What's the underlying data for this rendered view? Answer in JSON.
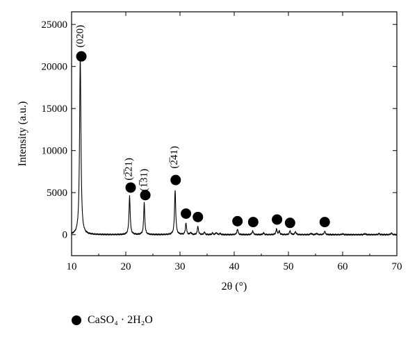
{
  "chart_data": {
    "type": "line",
    "xlabel": "2θ (°)",
    "ylabel": "Intensity (a.u.)",
    "xlim": [
      10,
      70
    ],
    "ylim": [
      -2500,
      26500
    ],
    "x_ticks": [
      10,
      20,
      30,
      40,
      50,
      60,
      70
    ],
    "y_ticks": [
      0,
      5000,
      10000,
      15000,
      20000,
      25000
    ],
    "grid": false,
    "baseline": 0,
    "peaks": [
      {
        "x": 11.6,
        "y": 21000,
        "w": 0.15
      },
      {
        "x": 20.7,
        "y": 4600,
        "w": 0.13
      },
      {
        "x": 23.4,
        "y": 3800,
        "w": 0.12
      },
      {
        "x": 29.1,
        "y": 5300,
        "w": 0.13
      },
      {
        "x": 31.1,
        "y": 1400,
        "w": 0.12
      },
      {
        "x": 32.0,
        "y": 250,
        "w": 0.12
      },
      {
        "x": 33.3,
        "y": 1000,
        "w": 0.12
      },
      {
        "x": 34.5,
        "y": 300,
        "w": 0.12
      },
      {
        "x": 36.0,
        "y": 200,
        "w": 0.12
      },
      {
        "x": 36.7,
        "y": 250,
        "w": 0.12
      },
      {
        "x": 37.4,
        "y": 150,
        "w": 0.12
      },
      {
        "x": 40.6,
        "y": 650,
        "w": 0.13
      },
      {
        "x": 43.4,
        "y": 450,
        "w": 0.13
      },
      {
        "x": 45.4,
        "y": 200,
        "w": 0.13
      },
      {
        "x": 47.8,
        "y": 650,
        "w": 0.13
      },
      {
        "x": 48.3,
        "y": 400,
        "w": 0.13
      },
      {
        "x": 50.3,
        "y": 450,
        "w": 0.13
      },
      {
        "x": 51.3,
        "y": 350,
        "w": 0.13
      },
      {
        "x": 54.2,
        "y": 150,
        "w": 0.13
      },
      {
        "x": 55.2,
        "y": 150,
        "w": 0.13
      },
      {
        "x": 56.7,
        "y": 400,
        "w": 0.13
      },
      {
        "x": 60.0,
        "y": 100,
        "w": 0.13
      },
      {
        "x": 64.1,
        "y": 120,
        "w": 0.13
      },
      {
        "x": 66.7,
        "y": 120,
        "w": 0.13
      },
      {
        "x": 69.0,
        "y": 200,
        "w": 0.13
      }
    ],
    "markers": [
      {
        "x": 11.8,
        "y": 21200
      },
      {
        "x": 20.9,
        "y": 5600
      },
      {
        "x": 23.6,
        "y": 4700
      },
      {
        "x": 29.2,
        "y": 6500
      },
      {
        "x": 31.1,
        "y": 2500
      },
      {
        "x": 33.3,
        "y": 2100
      },
      {
        "x": 40.6,
        "y": 1600
      },
      {
        "x": 43.5,
        "y": 1500
      },
      {
        "x": 47.9,
        "y": 1800
      },
      {
        "x": 50.3,
        "y": 1400
      },
      {
        "x": 56.7,
        "y": 1500
      }
    ],
    "annotations": [
      {
        "text": "(020)",
        "x": 12.1,
        "y": 23600,
        "rotate": -90
      },
      {
        "text": "(2̅21)",
        "x": 21.1,
        "y": 7800,
        "rotate": -90
      },
      {
        "text": "(1̅31)",
        "x": 23.9,
        "y": 6500,
        "rotate": -90
      },
      {
        "text": "(2̅41)",
        "x": 29.5,
        "y": 9200,
        "rotate": -90
      }
    ],
    "legend": {
      "placement": "bottom-left",
      "label": "CaSO₄ · 2H₂O",
      "marker": "filled-circle"
    }
  }
}
